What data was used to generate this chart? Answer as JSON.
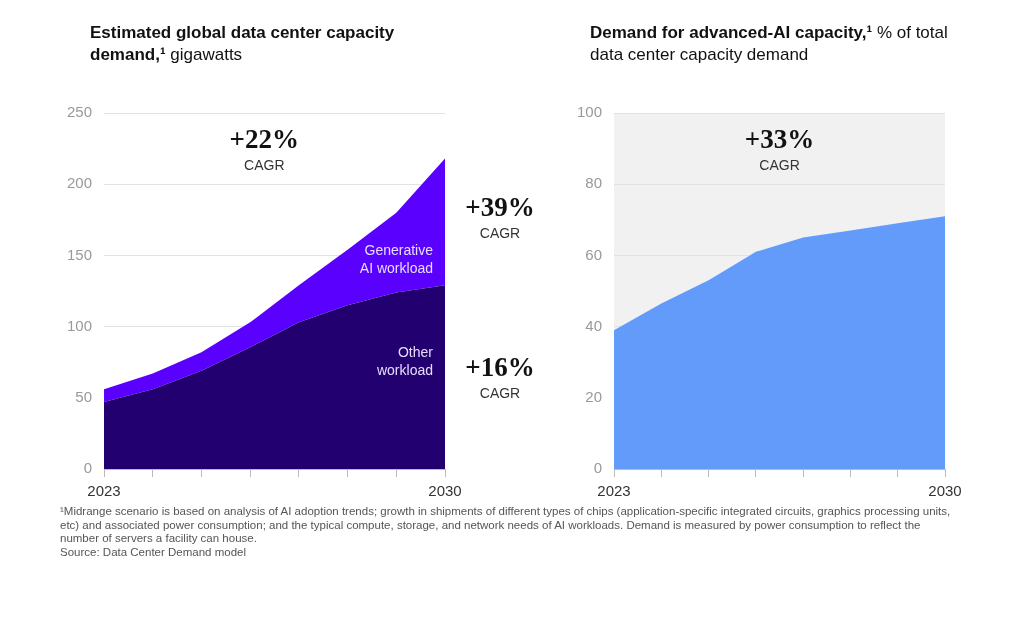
{
  "chart_data": [
    {
      "type": "area",
      "title": "Estimated global data center capacity demand,¹",
      "subtitle": "gigawatts",
      "categories": [
        "2023",
        null,
        null,
        null,
        null,
        null,
        null,
        "2030"
      ],
      "stacked": true,
      "grid": "y",
      "ylim": [
        0,
        250
      ],
      "yticks": [
        0,
        50,
        100,
        150,
        200,
        250
      ],
      "series": [
        {
          "name": "Other workload",
          "color": "#230070",
          "values": [
            47,
            56,
            69,
            85.5,
            103,
            115,
            124,
            129
          ]
        },
        {
          "name": "Generative AI workload",
          "color": "#5a00ff",
          "values": [
            9,
            11,
            13,
            17.5,
            26,
            39,
            56,
            89
          ]
        }
      ],
      "annotations": [
        "+22% CAGR",
        "+39% CAGR",
        "+16% CAGR"
      ]
    },
    {
      "type": "area",
      "title": "Demand for advanced-AI capacity,¹",
      "subtitle": "% of total data center capacity demand",
      "categories": [
        "2023",
        null,
        null,
        null,
        null,
        null,
        null,
        "2030"
      ],
      "grid": "y",
      "ylim": [
        0,
        100
      ],
      "yticks": [
        0,
        20,
        40,
        60,
        80,
        100
      ],
      "series": [
        {
          "color": "#639bfb",
          "values": [
            39,
            46.5,
            53,
            61,
            65,
            67,
            69,
            71
          ]
        }
      ],
      "annotations": [
        "+33% CAGR",
        "¹Midrange scenario is based on analysis of AI adoption trends; growth in shipments of different types of chips (application-specific integrated circuits, graphics processing units, etc) and associated power consumption; and the typical compute, storage, and network needs of AI workloads. Demand is measured by power consumption to reflect the number of servers a facility can house.",
        "Source: Data Center Demand model"
      ]
    }
  ]
}
